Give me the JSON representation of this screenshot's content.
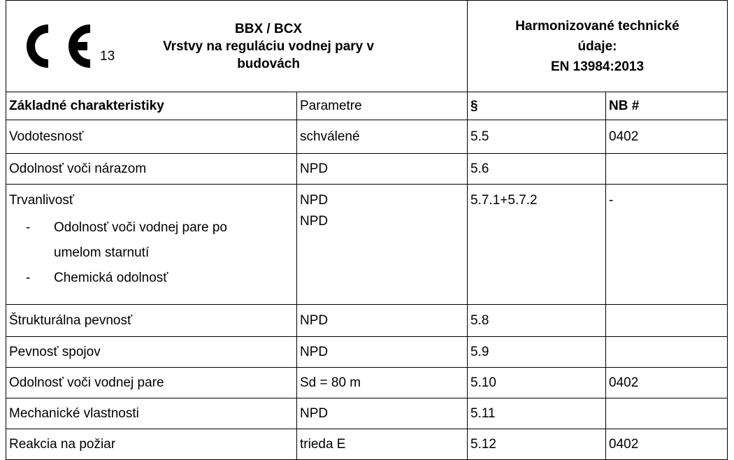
{
  "header": {
    "ce_number": "13",
    "title_lines": [
      "BBX / BCX",
      "Vrstvy na reguláciu vodnej pary v",
      "budovách"
    ],
    "spec_lines": [
      "Harmonizované technické",
      "údaje:",
      "EN 13984:2013"
    ]
  },
  "table": {
    "columns": [
      "Základné charakteristiky",
      "Parametre",
      "§",
      "NB #"
    ],
    "rows": [
      {
        "characteristic": "Vodotesnosť",
        "parameters": [
          "schválené"
        ],
        "clause": "5.5",
        "nb": "0402"
      },
      {
        "characteristic": "Odolnosť voči nárazom",
        "parameters": [
          "NPD"
        ],
        "clause": "5.6",
        "nb": null
      },
      {
        "characteristic": "Trvanlivosť",
        "sub_items": [
          "Odolnosť voči vodnej pare po umelom starnutí",
          "Chemická odolnosť"
        ],
        "parameters": [
          "NPD",
          "NPD"
        ],
        "clause": "5.7.1+5.7.2",
        "nb": "-"
      },
      {
        "characteristic": "Štrukturálna pevnosť",
        "parameters": [
          "NPD"
        ],
        "clause": "5.8",
        "nb": null
      },
      {
        "characteristic": "Pevnosť spojov",
        "parameters": [
          "NPD"
        ],
        "clause": "5.9",
        "nb": null
      },
      {
        "characteristic": "Odolnosť voči vodnej pare",
        "parameters": [
          "Sd = 80 m"
        ],
        "clause": "5.10",
        "nb": "0402"
      },
      {
        "characteristic": "Mechanické vlastnosti",
        "parameters": [
          "NPD"
        ],
        "clause": "5.11",
        "nb": null
      },
      {
        "characteristic": "Reakcia na požiar",
        "parameters": [
          "trieda E"
        ],
        "clause": "5.12",
        "nb": "0402"
      }
    ]
  }
}
